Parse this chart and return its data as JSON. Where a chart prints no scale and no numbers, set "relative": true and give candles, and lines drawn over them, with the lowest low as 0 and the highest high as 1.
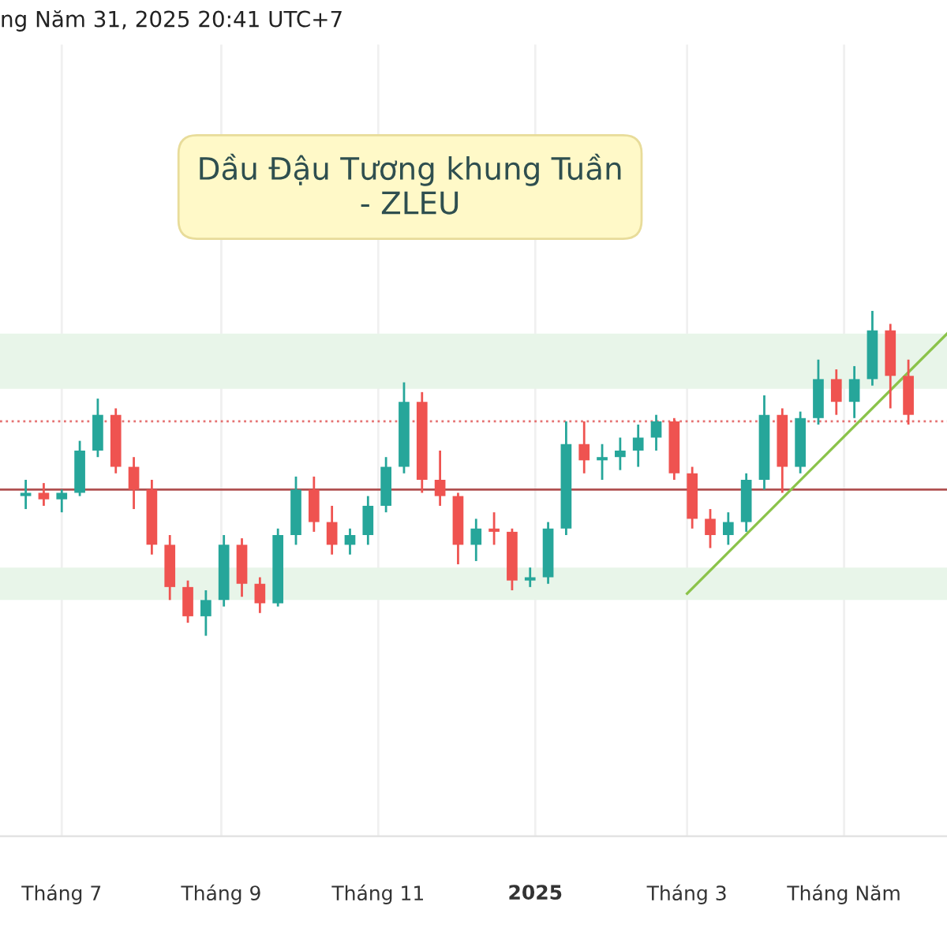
{
  "chart_data": {
    "type": "candlestick",
    "title": "Dầu Đậu Tương khung Tuần\n- ZLEU",
    "relative": true,
    "annotations": [
      "ng Năm 31, 2025 20:41 UTC+7"
    ],
    "x": [
      "2024-06-17",
      "2024-06-24",
      "2024-07-01",
      "2024-07-08",
      "2024-07-15",
      "2024-07-22",
      "2024-07-29",
      "2024-08-05",
      "2024-08-12",
      "2024-08-19",
      "2024-08-26",
      "2024-09-02",
      "2024-09-09",
      "2024-09-16",
      "2024-09-23",
      "2024-09-30",
      "2024-10-07",
      "2024-10-14",
      "2024-10-21",
      "2024-10-28",
      "2024-11-04",
      "2024-11-11",
      "2024-11-18",
      "2024-11-25",
      "2024-12-02",
      "2024-12-09",
      "2024-12-16",
      "2024-12-23",
      "2024-12-30",
      "2025-01-06",
      "2025-01-13",
      "2025-01-20",
      "2025-01-27",
      "2025-02-03",
      "2025-02-10",
      "2025-02-17",
      "2025-02-24",
      "2025-03-03",
      "2025-03-10",
      "2025-03-17",
      "2025-03-24",
      "2025-03-31",
      "2025-04-07",
      "2025-04-14",
      "2025-04-21",
      "2025-04-28",
      "2025-05-05",
      "2025-05-12",
      "2025-05-19",
      "2025-05-26"
    ],
    "ohlc": [
      [
        0.43,
        0.48,
        0.39,
        0.44
      ],
      [
        0.44,
        0.47,
        0.4,
        0.42
      ],
      [
        0.42,
        0.45,
        0.38,
        0.44
      ],
      [
        0.44,
        0.6,
        0.43,
        0.57
      ],
      [
        0.57,
        0.73,
        0.55,
        0.68
      ],
      [
        0.68,
        0.7,
        0.5,
        0.52
      ],
      [
        0.52,
        0.55,
        0.39,
        0.45
      ],
      [
        0.45,
        0.48,
        0.25,
        0.28
      ],
      [
        0.28,
        0.31,
        0.11,
        0.15
      ],
      [
        0.15,
        0.17,
        0.04,
        0.06
      ],
      [
        0.06,
        0.14,
        0.0,
        0.11
      ],
      [
        0.11,
        0.31,
        0.09,
        0.28
      ],
      [
        0.28,
        0.3,
        0.12,
        0.16
      ],
      [
        0.16,
        0.18,
        0.07,
        0.1
      ],
      [
        0.1,
        0.33,
        0.09,
        0.31
      ],
      [
        0.31,
        0.49,
        0.28,
        0.45
      ],
      [
        0.45,
        0.49,
        0.32,
        0.35
      ],
      [
        0.35,
        0.4,
        0.25,
        0.28
      ],
      [
        0.28,
        0.33,
        0.25,
        0.31
      ],
      [
        0.31,
        0.43,
        0.28,
        0.4
      ],
      [
        0.4,
        0.55,
        0.38,
        0.52
      ],
      [
        0.52,
        0.78,
        0.5,
        0.72
      ],
      [
        0.72,
        0.75,
        0.44,
        0.48
      ],
      [
        0.48,
        0.57,
        0.4,
        0.43
      ],
      [
        0.43,
        0.44,
        0.22,
        0.28
      ],
      [
        0.28,
        0.36,
        0.23,
        0.33
      ],
      [
        0.33,
        0.38,
        0.28,
        0.32
      ],
      [
        0.32,
        0.33,
        0.14,
        0.17
      ],
      [
        0.17,
        0.21,
        0.15,
        0.18
      ],
      [
        0.18,
        0.35,
        0.16,
        0.33
      ],
      [
        0.33,
        0.66,
        0.31,
        0.59
      ],
      [
        0.59,
        0.66,
        0.5,
        0.54
      ],
      [
        0.54,
        0.59,
        0.48,
        0.55
      ],
      [
        0.55,
        0.61,
        0.51,
        0.57
      ],
      [
        0.57,
        0.65,
        0.52,
        0.61
      ],
      [
        0.61,
        0.68,
        0.57,
        0.66
      ],
      [
        0.66,
        0.67,
        0.48,
        0.5
      ],
      [
        0.5,
        0.52,
        0.33,
        0.36
      ],
      [
        0.36,
        0.39,
        0.27,
        0.31
      ],
      [
        0.31,
        0.38,
        0.28,
        0.35
      ],
      [
        0.35,
        0.5,
        0.32,
        0.48
      ],
      [
        0.48,
        0.74,
        0.45,
        0.68
      ],
      [
        0.68,
        0.7,
        0.44,
        0.52
      ],
      [
        0.52,
        0.69,
        0.5,
        0.67
      ],
      [
        0.67,
        0.85,
        0.65,
        0.79
      ],
      [
        0.79,
        0.82,
        0.68,
        0.72
      ],
      [
        0.72,
        0.83,
        0.67,
        0.79
      ],
      [
        0.79,
        1.0,
        0.77,
        0.94
      ],
      [
        0.94,
        0.96,
        0.7,
        0.8
      ],
      [
        0.8,
        0.85,
        0.65,
        0.68
      ]
    ],
    "colors": [
      "#26a69a",
      "#ef5350",
      "#26a69a",
      "#26a69a",
      "#26a69a",
      "#ef5350",
      "#ef5350",
      "#ef5350",
      "#ef5350",
      "#ef5350",
      "#26a69a",
      "#26a69a",
      "#ef5350",
      "#ef5350",
      "#26a69a",
      "#26a69a",
      "#ef5350",
      "#ef5350",
      "#26a69a",
      "#26a69a",
      "#26a69a",
      "#26a69a",
      "#ef5350",
      "#ef5350",
      "#ef5350",
      "#26a69a",
      "#ef5350",
      "#ef5350",
      "#26a69a",
      "#26a69a",
      "#26a69a",
      "#ef5350",
      "#26a69a",
      "#26a69a",
      "#26a69a",
      "#26a69a",
      "#ef5350",
      "#ef5350",
      "#ef5350",
      "#26a69a",
      "#26a69a",
      "#26a69a",
      "#ef5350",
      "#26a69a",
      "#26a69a",
      "#ef5350",
      "#26a69a",
      "#26a69a",
      "#ef5350",
      "#ef5350"
    ],
    "series": [
      {
        "type": "line",
        "x": [
          "2025-03-01",
          "2025-06-10"
        ],
        "values": [
          0.13,
          0.93
        ],
        "color": "#8bc34a"
      }
    ],
    "ref_lines": [
      {
        "axis": "y",
        "value": 0.66,
        "label": null,
        "color": "#e57373",
        "line_style": "dotted"
      },
      {
        "axis": "y",
        "value": 0.45,
        "label": null,
        "color": "#b05050",
        "line_style": "solid"
      }
    ],
    "bands": [
      {
        "axis": "y",
        "from": 0.76,
        "to": 0.93,
        "label": null,
        "color": "#e8f5e9"
      },
      {
        "axis": "y",
        "from": 0.11,
        "to": 0.21,
        "label": null,
        "color": "#e8f5e9"
      }
    ],
    "xlim": [
      "2024-06-07",
      "2025-06-10"
    ],
    "xticks": [
      {
        "value": "2024-07-01",
        "label": "Tháng 7"
      },
      {
        "value": "2024-09-01",
        "label": "Tháng 9"
      },
      {
        "value": "2024-11-01",
        "label": "Tháng 11"
      },
      {
        "value": "2025-01-01",
        "label": "2025"
      },
      {
        "value": "2025-03-01",
        "label": "Tháng 3"
      },
      {
        "value": "2025-05-01",
        "label": "Tháng Năm"
      }
    ],
    "grid": "x",
    "tick_labels": "x"
  }
}
